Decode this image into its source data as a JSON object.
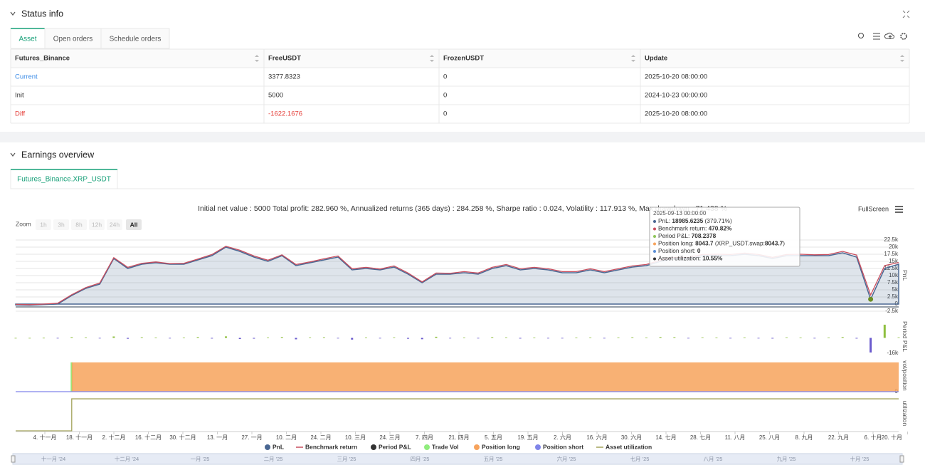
{
  "status_info": {
    "title": "Status info",
    "tabs": [
      "Asset",
      "Open orders",
      "Schedule orders"
    ],
    "table": {
      "headers": [
        "Futures_Binance",
        "FreeUSDT",
        "FrozenUSDT",
        "Update"
      ],
      "rows": [
        [
          "Current",
          "3377.8323",
          "0",
          "2025-10-20 08:00:00"
        ],
        [
          "Init",
          "5000",
          "0",
          "2024-10-23 00:00:00"
        ],
        [
          "Diff",
          "-1622.1676",
          "0",
          "2025-10-20 08:00:00"
        ]
      ]
    }
  },
  "earnings": {
    "title": "Earnings overview",
    "tab": "Futures_Binance.XRP_USDT",
    "summary": "Initial net value : 5000 Total profit: 282.960 %, Annualized returns (365 days) : 284.258 %, Sharpe ratio : 0.024, Volatility : 117.913 %, Max drawdown : 71.438 %",
    "fullscreen": "FullScreen",
    "zoom_label": "Zoom",
    "zoom_buttons": [
      "1h",
      "3h",
      "8h",
      "12h",
      "24h",
      "All"
    ],
    "tooltip": {
      "date": "2025-09-13 00:00:00",
      "rows": [
        {
          "color": "#4a6792",
          "parts": [
            {
              "text": "PnL: "
            },
            {
              "text": "18985.6235",
              "bold": true
            },
            {
              "text": " (379.71%)"
            }
          ]
        },
        {
          "color": "#c94f5f",
          "parts": [
            {
              "text": "Benchmark return: "
            },
            {
              "text": "470.82%",
              "bold": true
            }
          ]
        },
        {
          "color": "#8fc55a",
          "parts": [
            {
              "text": "Period P&L: "
            },
            {
              "text": "708.2378",
              "bold": true
            }
          ]
        },
        {
          "color": "#f7a35c",
          "parts": [
            {
              "text": "Position long: "
            },
            {
              "text": "8043.7",
              "bold": true
            },
            {
              "text": " (XRP_USDT.swap:"
            },
            {
              "text": "8043.7",
              "bold": true
            },
            {
              "text": ")"
            }
          ]
        },
        {
          "color": "#5b8fd6",
          "parts": [
            {
              "text": "Position short: "
            },
            {
              "text": "0",
              "bold": true
            }
          ]
        },
        {
          "color": "#333333",
          "parts": [
            {
              "text": "Asset utilization: "
            },
            {
              "text": "10.55%",
              "bold": true
            }
          ]
        }
      ]
    }
  },
  "chart_data": {
    "type": "line",
    "x_labels": [
      "4. 十一月",
      "18. 十一月",
      "2. 十二月",
      "16. 十二月",
      "30. 十二月",
      "13. 一月",
      "27. 一月",
      "10. 二月",
      "24. 二月",
      "10. 三月",
      "24. 三月",
      "7. 四月",
      "21. 四月",
      "5. 五月",
      "19. 五月",
      "2. 六月",
      "16. 六月",
      "30. 六月",
      "14. 七月",
      "28. 七月",
      "11. 八月",
      "25. 八月",
      "8. 九月",
      "22. 九月",
      "6. 十月",
      "20. 十月"
    ],
    "navigator_labels": [
      "十一月 '24",
      "十二月 '24",
      "一月 '25",
      "二月 '25",
      "三月 '25",
      "四月 '25",
      "五月 '25",
      "六月 '25",
      "七月 '25",
      "八月 '25",
      "九月 '25",
      "十月 '25"
    ],
    "panes": [
      {
        "label": "PnL",
        "ylim": [
          -3250,
          23500
        ],
        "yticks": [
          {
            "value": -2500,
            "label": "-2.5k"
          },
          0,
          {
            "value": 2500,
            "label": "2.5k"
          },
          {
            "value": 5000,
            "label": "5k"
          },
          {
            "value": 7500,
            "label": "7.5k"
          },
          {
            "value": 10000,
            "label": "10k"
          },
          {
            "value": 12500,
            "label": "12.5k"
          },
          {
            "value": 15000,
            "label": "15k"
          },
          {
            "value": 17500,
            "label": "17.5k"
          },
          {
            "value": 20000,
            "label": "20k"
          },
          {
            "value": 22500,
            "label": "22.5k"
          }
        ]
      },
      {
        "label": "Period P&L",
        "ylim": [
          -17000,
          20000
        ],
        "yticks": [
          {
            "value": -16000,
            "label": "-16k"
          }
        ]
      },
      {
        "label": "vol/position",
        "ylim": [
          0,
          8800
        ],
        "yticks": [
          0
        ]
      },
      {
        "label": "utilization",
        "ylim": [
          0,
          11.5
        ],
        "yticks": []
      }
    ],
    "series": [
      {
        "name": "PnL",
        "color": "#4a6792",
        "pane": 0,
        "kind": "area",
        "legend_symbol": "dot",
        "values": [
          -300,
          -400,
          -200,
          0,
          3000,
          5500,
          7000,
          16000,
          12500,
          14000,
          14500,
          14000,
          14000,
          15500,
          17000,
          20000,
          18500,
          16500,
          15000,
          17000,
          13500,
          14500,
          15500,
          16500,
          12000,
          12500,
          12000,
          13000,
          10500,
          7500,
          10500,
          10500,
          11000,
          10500,
          12500,
          13500,
          12000,
          12500,
          12000,
          11000,
          11000,
          12000,
          11000,
          12000,
          13000,
          13500,
          15000,
          16000,
          16000,
          17000,
          17000,
          17000,
          17500,
          17000,
          16000,
          17000,
          17000,
          17000,
          17000,
          18000,
          16500,
          1700,
          12500,
          14000
        ]
      },
      {
        "name": "Benchmark return",
        "color": "#c94f5f",
        "pane": 0,
        "kind": "line",
        "legend_symbol": "line",
        "values": [
          -100,
          -200,
          0,
          300,
          3300,
          5800,
          7400,
          16300,
          12900,
          14300,
          14800,
          14200,
          14300,
          15800,
          17400,
          20300,
          18900,
          16900,
          15400,
          17300,
          13900,
          14800,
          15900,
          16900,
          12400,
          12900,
          12300,
          13400,
          10900,
          7800,
          10900,
          10800,
          11400,
          10900,
          12900,
          13900,
          12400,
          12900,
          12400,
          11400,
          11400,
          12400,
          11400,
          12400,
          13400,
          13900,
          15400,
          16400,
          16400,
          17400,
          17500,
          17400,
          17900,
          17400,
          16400,
          17400,
          17500,
          17300,
          17400,
          18500,
          17200,
          3200,
          13500,
          14600
        ]
      },
      {
        "name": "Period P&L",
        "color": "#8fbf3f",
        "negative_color": "#6a5acd",
        "pane": 1,
        "kind": "bar",
        "legend_symbol": "dot",
        "legend_color": "#333333",
        "values": [
          0,
          0,
          100,
          -100,
          800,
          600,
          -500,
          1500,
          -900,
          700,
          400,
          -600,
          300,
          900,
          -700,
          1600,
          -1200,
          -800,
          500,
          900,
          -1500,
          600,
          700,
          -400,
          -1800,
          500,
          -300,
          600,
          -900,
          -1400,
          1200,
          -300,
          400,
          -500,
          800,
          600,
          -700,
          300,
          -400,
          -600,
          300,
          500,
          -600,
          500,
          700,
          400,
          900,
          800,
          -300,
          600,
          400,
          -300,
          500,
          -400,
          -700,
          600,
          300,
          -200,
          400,
          900,
          -700,
          -15500,
          14000,
          600
        ]
      },
      {
        "name": "Trade Vol",
        "color": "#90ed7d",
        "pane": 2,
        "kind": "bar",
        "legend_symbol": "dot",
        "values": [
          null,
          null,
          null,
          null,
          8043.7,
          null,
          null,
          null,
          null,
          null,
          null,
          null,
          null,
          null,
          null,
          null,
          null,
          null,
          null,
          null,
          null,
          null,
          null,
          null,
          null,
          null,
          null,
          null,
          null,
          null,
          null,
          null,
          null,
          null,
          null,
          null,
          null,
          null,
          null,
          null,
          null,
          null,
          null,
          null,
          null,
          null,
          null,
          null,
          null,
          null,
          null,
          null,
          null,
          null,
          null,
          null,
          null,
          null,
          null,
          null,
          null,
          null,
          null,
          null
        ]
      },
      {
        "name": "Position long",
        "color": "#f7a35c",
        "pane": 2,
        "kind": "step-area",
        "legend_symbol": "dot",
        "values": [
          0,
          0,
          0,
          0,
          8043.7,
          8043.7,
          8043.7,
          8043.7,
          8043.7,
          8043.7,
          8043.7,
          8043.7,
          8043.7,
          8043.7,
          8043.7,
          8043.7,
          8043.7,
          8043.7,
          8043.7,
          8043.7,
          8043.7,
          8043.7,
          8043.7,
          8043.7,
          8043.7,
          8043.7,
          8043.7,
          8043.7,
          8043.7,
          8043.7,
          8043.7,
          8043.7,
          8043.7,
          8043.7,
          8043.7,
          8043.7,
          8043.7,
          8043.7,
          8043.7,
          8043.7,
          8043.7,
          8043.7,
          8043.7,
          8043.7,
          8043.7,
          8043.7,
          8043.7,
          8043.7,
          8043.7,
          8043.7,
          8043.7,
          8043.7,
          8043.7,
          8043.7,
          8043.7,
          8043.7,
          8043.7,
          8043.7,
          8043.7,
          8043.7,
          8043.7,
          8043.7,
          8043.7,
          8043.7
        ]
      },
      {
        "name": "Position short",
        "color": "#8085e9",
        "pane": 2,
        "kind": "line",
        "legend_symbol": "dot",
        "values": [
          0,
          0,
          0,
          0,
          0,
          0,
          0,
          0,
          0,
          0,
          0,
          0,
          0,
          0,
          0,
          0,
          0,
          0,
          0,
          0,
          0,
          0,
          0,
          0,
          0,
          0,
          0,
          0,
          0,
          0,
          0,
          0,
          0,
          0,
          0,
          0,
          0,
          0,
          0,
          0,
          0,
          0,
          0,
          0,
          0,
          0,
          0,
          0,
          0,
          0,
          0,
          0,
          0,
          0,
          0,
          0,
          0,
          0,
          0,
          0,
          0,
          0,
          0,
          0
        ]
      },
      {
        "name": "Asset utilization",
        "color": "#a3a35a",
        "pane": 3,
        "kind": "step",
        "legend_symbol": "line",
        "values": [
          0,
          0,
          0,
          0,
          10.55,
          10.55,
          10.55,
          10.55,
          10.55,
          10.55,
          10.55,
          10.55,
          10.55,
          10.55,
          10.55,
          10.55,
          10.55,
          10.55,
          10.55,
          10.55,
          10.55,
          10.55,
          10.55,
          10.55,
          10.55,
          10.55,
          10.55,
          10.55,
          10.55,
          10.55,
          10.55,
          10.55,
          10.55,
          10.55,
          10.55,
          10.55,
          10.55,
          10.55,
          10.55,
          10.55,
          10.55,
          10.55,
          10.55,
          10.55,
          10.55,
          10.55,
          10.55,
          10.55,
          10.55,
          10.55,
          10.55,
          10.55,
          10.55,
          10.55,
          10.55,
          10.55,
          10.55,
          10.55,
          10.55,
          10.55,
          10.55,
          10.55,
          10.55,
          10.55
        ]
      }
    ]
  }
}
